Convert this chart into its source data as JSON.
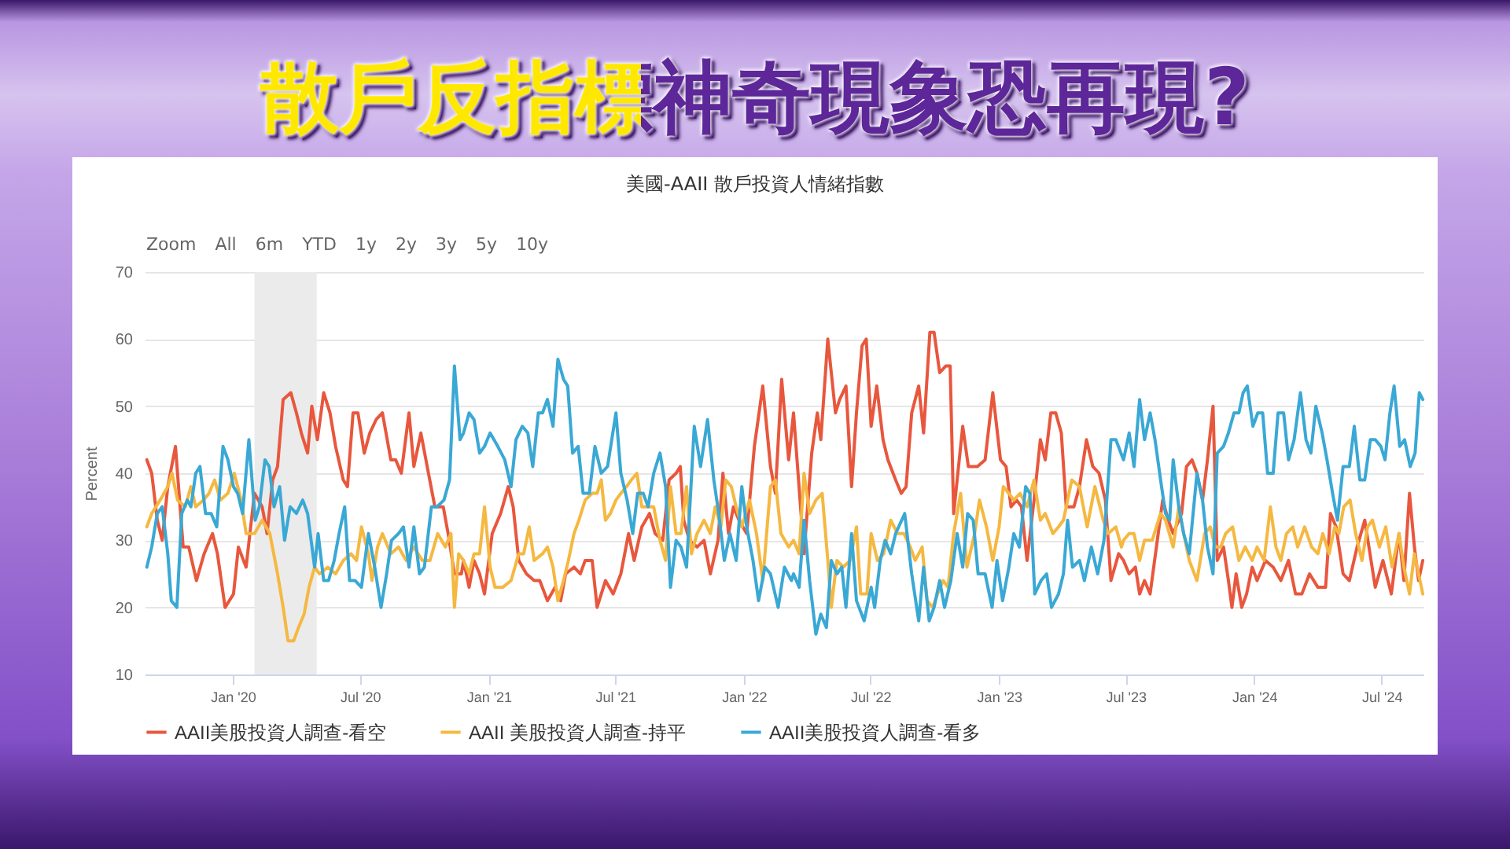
{
  "chart_data": {
    "type": "line",
    "title": "散戶反指標神奇現象恐再現?",
    "subtitle": "美國-AAII 散戶投資人情緒指數",
    "ylabel": "Percent",
    "annotations": [
      "Zoom",
      "All",
      "6m",
      "YTD",
      "1y",
      "2y",
      "3y",
      "5y",
      "10y"
    ],
    "xlim": [
      "2019-08-28",
      "2024-08-30"
    ],
    "xticks": [
      {
        "value": "2020-01-01",
        "label": "Jan '20"
      },
      {
        "value": "2020-07-01",
        "label": "Jul '20"
      },
      {
        "value": "2021-01-01",
        "label": "Jan '21"
      },
      {
        "value": "2021-07-01",
        "label": "Jul '21"
      },
      {
        "value": "2022-01-01",
        "label": "Jan '22"
      },
      {
        "value": "2022-07-01",
        "label": "Jul '22"
      },
      {
        "value": "2023-01-01",
        "label": "Jan '23"
      },
      {
        "value": "2023-07-01",
        "label": "Jul '23"
      },
      {
        "value": "2024-01-01",
        "label": "Jan '24"
      },
      {
        "value": "2024-07-01",
        "label": "Jul '24"
      }
    ],
    "ylim": [
      10,
      70
    ],
    "yticks": [
      10,
      20,
      30,
      40,
      50,
      60,
      70
    ],
    "grid": "y",
    "legend": "bottom",
    "line_style": "solid",
    "bands": [
      {
        "axis": "x",
        "from": "2020-02-01",
        "to": "2020-04-30",
        "color": "#ebebeb"
      }
    ],
    "series": [
      {
        "name": "AAII美股投資人調查-看空",
        "color": "#e8573d",
        "x": [
          "2019-08-31",
          "2019-09-07",
          "2019-09-15",
          "2019-09-22",
          "2019-09-30",
          "2019-10-11",
          "2019-10-22",
          "2019-10-30",
          "2019-11-10",
          "2019-11-21",
          "2019-12-03",
          "2019-12-10",
          "2019-12-21",
          "2020-01-02",
          "2020-01-09",
          "2020-01-20",
          "2020-02-01",
          "2020-02-12",
          "2020-02-19",
          "2020-02-27",
          "2020-03-05",
          "2020-03-13",
          "2020-03-24",
          "2020-04-01",
          "2020-04-08",
          "2020-04-17",
          "2020-04-23",
          "2020-05-01",
          "2020-05-10",
          "2020-05-19",
          "2020-05-27",
          "2020-06-07",
          "2020-06-13",
          "2020-06-21",
          "2020-06-28",
          "2020-07-07",
          "2020-07-15",
          "2020-07-24",
          "2020-08-02",
          "2020-08-14",
          "2020-08-21",
          "2020-08-29",
          "2020-09-09",
          "2020-09-16",
          "2020-09-26",
          "2020-10-05",
          "2020-10-16",
          "2020-10-28",
          "2020-11-04",
          "2020-11-13",
          "2020-11-23",
          "2020-11-26",
          "2020-12-04",
          "2020-12-11",
          "2020-12-19",
          "2020-12-26",
          "2021-01-06",
          "2021-01-18",
          "2021-01-29",
          "2021-02-05",
          "2021-02-13",
          "2021-02-24",
          "2021-03-07",
          "2021-03-15",
          "2021-03-26",
          "2021-04-06",
          "2021-04-14",
          "2021-04-21",
          "2021-05-03",
          "2021-05-12",
          "2021-05-19",
          "2021-05-29",
          "2021-06-05",
          "2021-06-17",
          "2021-06-28",
          "2021-07-09",
          "2021-07-20",
          "2021-07-28",
          "2021-08-08",
          "2021-08-19",
          "2021-08-27",
          "2021-09-07",
          "2021-09-16",
          "2021-09-26",
          "2021-10-02",
          "2021-10-07",
          "2021-10-15",
          "2021-10-26",
          "2021-11-05",
          "2021-11-14",
          "2021-11-25",
          "2021-12-02",
          "2021-12-10",
          "2021-12-17",
          "2021-12-25",
          "2022-01-05",
          "2022-01-16",
          "2022-01-28",
          "2022-02-08",
          "2022-02-15",
          "2022-02-24",
          "2022-03-06",
          "2022-03-13",
          "2022-03-28",
          "2022-04-08",
          "2022-04-16",
          "2022-04-21",
          "2022-05-01",
          "2022-05-12",
          "2022-05-18",
          "2022-05-27",
          "2022-06-04",
          "2022-06-11",
          "2022-06-19",
          "2022-06-25",
          "2022-07-02",
          "2022-07-10",
          "2022-07-19",
          "2022-07-26",
          "2022-08-06",
          "2022-08-14",
          "2022-08-21",
          "2022-08-29",
          "2022-09-08",
          "2022-09-15",
          "2022-09-24",
          "2022-09-30",
          "2022-10-08",
          "2022-10-17",
          "2022-10-23",
          "2022-10-28",
          "2022-11-10",
          "2022-11-18",
          "2022-12-01",
          "2022-12-12",
          "2022-12-23",
          "2023-01-03",
          "2023-01-11",
          "2023-01-18",
          "2023-01-26",
          "2023-02-02",
          "2023-02-10",
          "2023-02-20",
          "2023-03-01",
          "2023-03-08",
          "2023-03-16",
          "2023-03-23",
          "2023-03-31",
          "2023-04-07",
          "2023-04-18",
          "2023-04-26",
          "2023-05-06",
          "2023-05-15",
          "2023-05-24",
          "2023-06-02",
          "2023-06-10",
          "2023-06-21",
          "2023-06-28",
          "2023-07-06",
          "2023-07-15",
          "2023-07-21",
          "2023-07-28",
          "2023-08-05",
          "2023-08-14",
          "2023-08-23",
          "2023-08-31",
          "2023-09-07",
          "2023-09-19",
          "2023-09-26",
          "2023-10-04",
          "2023-10-11",
          "2023-10-19",
          "2023-10-26",
          "2023-11-03",
          "2023-11-09",
          "2023-11-18",
          "2023-11-25",
          "2023-11-30",
          "2023-12-06",
          "2023-12-14",
          "2023-12-21",
          "2023-12-29",
          "2024-01-05",
          "2024-01-17",
          "2024-01-28",
          "2024-02-08",
          "2024-02-19",
          "2024-02-29",
          "2024-03-09",
          "2024-03-20",
          "2024-04-01",
          "2024-04-12",
          "2024-04-19",
          "2024-04-27",
          "2024-05-07",
          "2024-05-16",
          "2024-05-27",
          "2024-06-07",
          "2024-06-16",
          "2024-06-22",
          "2024-07-03",
          "2024-07-15",
          "2024-07-26",
          "2024-08-02",
          "2024-08-10",
          "2024-08-17",
          "2024-08-23",
          "2024-08-29"
        ],
        "values": [
          42,
          40,
          33,
          30,
          38,
          44,
          29,
          29,
          24,
          28,
          31,
          28,
          20,
          22,
          29,
          26,
          37,
          35,
          31,
          39,
          41,
          51,
          52,
          49,
          46,
          43,
          50,
          45,
          52,
          49,
          44,
          39,
          38,
          49,
          49,
          43,
          46,
          48,
          49,
          42,
          42,
          40,
          49,
          41,
          46,
          41,
          35,
          35,
          31,
          25,
          25,
          27,
          23,
          27,
          25,
          22,
          31,
          34,
          38,
          35,
          27,
          25,
          24,
          24,
          21,
          23,
          21,
          25,
          26,
          25,
          27,
          27,
          20,
          24,
          22,
          25,
          31,
          27,
          32,
          34,
          31,
          30,
          39,
          40,
          41,
          33,
          30,
          29,
          30,
          25,
          30,
          40,
          31,
          35,
          33,
          31,
          44,
          53,
          41,
          37,
          54,
          42,
          49,
          28,
          43,
          49,
          45,
          60,
          49,
          51,
          53,
          38,
          49,
          59,
          60,
          47,
          53,
          45,
          42,
          39,
          37,
          38,
          49,
          53,
          46,
          61,
          61,
          55,
          56,
          56,
          34,
          47,
          41,
          41,
          42,
          52,
          42,
          41,
          35,
          36,
          35,
          27,
          36,
          45,
          42,
          49,
          49,
          46,
          35,
          35,
          38,
          45,
          41,
          40,
          36,
          24,
          28,
          27,
          25,
          26,
          22,
          24,
          22,
          29,
          36,
          33,
          31,
          34,
          41,
          42,
          40,
          36,
          42,
          50,
          27,
          29,
          24,
          20,
          25,
          20,
          22,
          26,
          24,
          27,
          26,
          24,
          27,
          22,
          22,
          25,
          23,
          23,
          34,
          32,
          25,
          24,
          29,
          33,
          27,
          23,
          27,
          22,
          31,
          24,
          37,
          29,
          24,
          27
        ]
      },
      {
        "name": "AAII 美股投資人調查-持平",
        "color": "#f5b841",
        "x": [
          "2019-08-31",
          "2019-09-07",
          "2019-09-19",
          "2019-09-30",
          "2019-10-06",
          "2019-10-14",
          "2019-10-25",
          "2019-11-02",
          "2019-11-09",
          "2019-11-20",
          "2019-11-28",
          "2019-12-06",
          "2019-12-14",
          "2019-12-25",
          "2020-01-03",
          "2020-01-13",
          "2020-01-20",
          "2020-02-01",
          "2020-02-12",
          "2020-02-23",
          "2020-03-05",
          "2020-03-13",
          "2020-03-20",
          "2020-03-28",
          "2020-04-04",
          "2020-04-12",
          "2020-04-19",
          "2020-04-27",
          "2020-05-04",
          "2020-05-16",
          "2020-05-27",
          "2020-06-07",
          "2020-06-18",
          "2020-06-26",
          "2020-07-03",
          "2020-07-13",
          "2020-07-18",
          "2020-07-26",
          "2020-08-02",
          "2020-08-14",
          "2020-08-25",
          "2020-09-05",
          "2020-09-16",
          "2020-09-28",
          "2020-10-09",
          "2020-10-20",
          "2020-10-31",
          "2020-11-08",
          "2020-11-13",
          "2020-11-19",
          "2020-11-26",
          "2020-12-04",
          "2020-12-11",
          "2020-12-19",
          "2020-12-26",
          "2021-01-03",
          "2021-01-10",
          "2021-01-21",
          "2021-02-02",
          "2021-02-13",
          "2021-02-20",
          "2021-02-28",
          "2021-03-07",
          "2021-03-19",
          "2021-03-26",
          "2021-04-03",
          "2021-04-10",
          "2021-04-18",
          "2021-04-25",
          "2021-05-03",
          "2021-05-10",
          "2021-05-19",
          "2021-05-29",
          "2021-06-05",
          "2021-06-11",
          "2021-06-17",
          "2021-06-24",
          "2021-07-02",
          "2021-07-09",
          "2021-07-17",
          "2021-07-24",
          "2021-08-01",
          "2021-08-08",
          "2021-08-16",
          "2021-08-25",
          "2021-09-03",
          "2021-09-11",
          "2021-09-18",
          "2021-09-26",
          "2021-10-03",
          "2021-10-11",
          "2021-10-18",
          "2021-10-26",
          "2021-11-05",
          "2021-11-14",
          "2021-11-21",
          "2021-11-29",
          "2021-12-06",
          "2021-12-14",
          "2021-12-21",
          "2021-12-29",
          "2022-01-09",
          "2022-01-19",
          "2022-01-28",
          "2022-02-08",
          "2022-02-15",
          "2022-02-23",
          "2022-03-06",
          "2022-03-13",
          "2022-03-21",
          "2022-03-28",
          "2022-04-05",
          "2022-04-14",
          "2022-04-23",
          "2022-05-01",
          "2022-05-06",
          "2022-05-14",
          "2022-05-23",
          "2022-06-02",
          "2022-06-11",
          "2022-06-17",
          "2022-06-26",
          "2022-07-02",
          "2022-07-11",
          "2022-07-20",
          "2022-07-30",
          "2022-08-09",
          "2022-08-18",
          "2022-08-27",
          "2022-09-03",
          "2022-09-13",
          "2022-09-20",
          "2022-09-28",
          "2022-10-05",
          "2022-10-13",
          "2022-10-20",
          "2022-10-28",
          "2022-11-07",
          "2022-11-16",
          "2022-11-27",
          "2022-12-04",
          "2022-12-14",
          "2022-12-23",
          "2023-01-01",
          "2023-01-07",
          "2023-01-15",
          "2023-01-22",
          "2023-01-31",
          "2023-02-10",
          "2023-02-20",
          "2023-03-01",
          "2023-03-08",
          "2023-03-19",
          "2023-03-27",
          "2023-04-03",
          "2023-04-15",
          "2023-04-26",
          "2023-05-07",
          "2023-05-18",
          "2023-05-30",
          "2023-06-06",
          "2023-06-17",
          "2023-06-25",
          "2023-06-28",
          "2023-07-06",
          "2023-07-13",
          "2023-07-21",
          "2023-07-28",
          "2023-08-08",
          "2023-08-20",
          "2023-08-27",
          "2023-09-07",
          "2023-09-15",
          "2023-09-22",
          "2023-09-30",
          "2023-10-11",
          "2023-10-22",
          "2023-10-30",
          "2023-11-06",
          "2023-11-14",
          "2023-11-21",
          "2023-12-01",
          "2023-12-10",
          "2023-12-19",
          "2023-12-29",
          "2024-01-05",
          "2024-01-15",
          "2024-01-24",
          "2024-02-01",
          "2024-02-08",
          "2024-02-16",
          "2024-02-25",
          "2024-03-03",
          "2024-03-13",
          "2024-03-23",
          "2024-04-01",
          "2024-04-08",
          "2024-04-17",
          "2024-04-25",
          "2024-05-01",
          "2024-05-08",
          "2024-05-17",
          "2024-05-25",
          "2024-06-03",
          "2024-06-11",
          "2024-06-18",
          "2024-06-28",
          "2024-07-07",
          "2024-07-16",
          "2024-07-26",
          "2024-08-02",
          "2024-08-10",
          "2024-08-17",
          "2024-08-25",
          "2024-08-29"
        ],
        "values": [
          32,
          34,
          36,
          38,
          40,
          36,
          35,
          38,
          35,
          36,
          37,
          39,
          36,
          37,
          40,
          36,
          31,
          31,
          33,
          31,
          25,
          20,
          15,
          15,
          17,
          19,
          23,
          26,
          25,
          26,
          25,
          27,
          28,
          27,
          32,
          28,
          24,
          29,
          31,
          28,
          29,
          27,
          29,
          27,
          27,
          31,
          29,
          31,
          20,
          28,
          27,
          25,
          28,
          28,
          35,
          26,
          23,
          23,
          24,
          28,
          28,
          32,
          27,
          28,
          29,
          26,
          21,
          24,
          27,
          31,
          33,
          36,
          37,
          37,
          39,
          33,
          34,
          36,
          37,
          38,
          39,
          40,
          35,
          35,
          35,
          30,
          27,
          38,
          31,
          31,
          38,
          28,
          31,
          33,
          31,
          35,
          32,
          39,
          38,
          35,
          32,
          36,
          31,
          24,
          38,
          39,
          31,
          29,
          30,
          28,
          40,
          34,
          36,
          37,
          27,
          20,
          27,
          26,
          27,
          32,
          22,
          22,
          31,
          27,
          28,
          33,
          31,
          31,
          29,
          27,
          29,
          21,
          20,
          22,
          24,
          23,
          31,
          37,
          26,
          31,
          36,
          32,
          27,
          32,
          38,
          37,
          36,
          37,
          35,
          39,
          33,
          34,
          31,
          32,
          33,
          39,
          38,
          32,
          38,
          33,
          31,
          32,
          29,
          30,
          31,
          31,
          27,
          30,
          30,
          34,
          33,
          29,
          35,
          31,
          27,
          24,
          31,
          32,
          29,
          29,
          31,
          32,
          27,
          29,
          27,
          29,
          27,
          35,
          29,
          27,
          31,
          32,
          29,
          32,
          29,
          28,
          31,
          28,
          32,
          31,
          35,
          36,
          31,
          27,
          32,
          33,
          29,
          32,
          26,
          31,
          26,
          22,
          28,
          24,
          22
        ]
      },
      {
        "name": "AAII美股投資人調查-看多",
        "color": "#3aa8d5",
        "x": [
          "2019-08-31",
          "2019-09-07",
          "2019-09-15",
          "2019-09-22",
          "2019-09-30",
          "2019-10-05",
          "2019-10-13",
          "2019-10-20",
          "2019-10-28",
          "2019-11-02",
          "2019-11-09",
          "2019-11-15",
          "2019-11-23",
          "2019-12-01",
          "2019-12-09",
          "2019-12-18",
          "2019-12-25",
          "2020-01-02",
          "2020-01-08",
          "2020-01-15",
          "2020-01-24",
          "2020-02-02",
          "2020-02-08",
          "2020-02-16",
          "2020-02-22",
          "2020-02-29",
          "2020-03-08",
          "2020-03-15",
          "2020-03-23",
          "2020-04-01",
          "2020-04-10",
          "2020-04-17",
          "2020-04-27",
          "2020-05-02",
          "2020-05-10",
          "2020-05-17",
          "2020-05-25",
          "2020-06-01",
          "2020-06-09",
          "2020-06-16",
          "2020-06-24",
          "2020-07-03",
          "2020-07-13",
          "2020-07-22",
          "2020-07-31",
          "2020-08-08",
          "2020-08-15",
          "2020-08-25",
          "2020-09-01",
          "2020-09-09",
          "2020-09-16",
          "2020-09-24",
          "2020-10-01",
          "2020-10-11",
          "2020-10-19",
          "2020-10-29",
          "2020-11-06",
          "2020-11-13",
          "2020-11-21",
          "2020-11-26",
          "2020-12-04",
          "2020-12-11",
          "2020-12-19",
          "2020-12-26",
          "2021-01-03",
          "2021-01-14",
          "2021-01-24",
          "2021-02-02",
          "2021-02-09",
          "2021-02-18",
          "2021-02-26",
          "2021-03-05",
          "2021-03-13",
          "2021-03-19",
          "2021-03-26",
          "2021-04-03",
          "2021-04-10",
          "2021-04-18",
          "2021-04-24",
          "2021-05-01",
          "2021-05-09",
          "2021-05-16",
          "2021-05-25",
          "2021-06-02",
          "2021-06-11",
          "2021-06-20",
          "2021-07-02",
          "2021-07-09",
          "2021-07-18",
          "2021-07-26",
          "2021-08-02",
          "2021-08-10",
          "2021-08-17",
          "2021-08-25",
          "2021-09-03",
          "2021-09-11",
          "2021-09-18",
          "2021-09-26",
          "2021-10-03",
          "2021-10-11",
          "2021-10-22",
          "2021-10-31",
          "2021-11-10",
          "2021-11-19",
          "2021-11-26",
          "2021-12-04",
          "2021-12-12",
          "2021-12-21",
          "2021-12-29",
          "2022-01-05",
          "2022-01-14",
          "2022-01-22",
          "2022-01-31",
          "2022-02-08",
          "2022-02-19",
          "2022-02-28",
          "2022-03-10",
          "2022-03-13",
          "2022-03-21",
          "2022-03-28",
          "2022-04-05",
          "2022-04-14",
          "2022-04-21",
          "2022-04-29",
          "2022-05-06",
          "2022-05-14",
          "2022-05-21",
          "2022-05-27",
          "2022-06-04",
          "2022-06-11",
          "2022-06-22",
          "2022-07-02",
          "2022-07-07",
          "2022-07-15",
          "2022-07-22",
          "2022-07-30",
          "2022-08-06",
          "2022-08-19",
          "2022-08-29",
          "2022-09-08",
          "2022-09-15",
          "2022-09-23",
          "2022-09-30",
          "2022-10-08",
          "2022-10-15",
          "2022-10-24",
          "2022-11-02",
          "2022-11-10",
          "2022-11-17",
          "2022-11-25",
          "2022-12-02",
          "2022-12-12",
          "2022-12-22",
          "2022-12-29",
          "2023-01-06",
          "2023-01-15",
          "2023-01-22",
          "2023-01-30",
          "2023-02-08",
          "2023-02-14",
          "2023-02-21",
          "2023-03-02",
          "2023-03-10",
          "2023-03-17",
          "2023-03-27",
          "2023-04-03",
          "2023-04-09",
          "2023-04-16",
          "2023-04-26",
          "2023-05-03",
          "2023-05-13",
          "2023-05-22",
          "2023-05-31",
          "2023-06-10",
          "2023-06-17",
          "2023-06-28",
          "2023-07-06",
          "2023-07-13",
          "2023-07-21",
          "2023-07-28",
          "2023-08-05",
          "2023-08-12",
          "2023-08-20",
          "2023-08-27",
          "2023-09-02",
          "2023-09-07",
          "2023-09-15",
          "2023-09-22",
          "2023-09-30",
          "2023-10-11",
          "2023-10-19",
          "2023-10-26",
          "2023-11-03",
          "2023-11-09",
          "2023-11-18",
          "2023-11-25",
          "2023-12-03",
          "2023-12-10",
          "2023-12-16",
          "2023-12-22",
          "2023-12-30",
          "2024-01-06",
          "2024-01-13",
          "2024-01-20",
          "2024-01-28",
          "2024-02-04",
          "2024-02-12",
          "2024-02-19",
          "2024-02-27",
          "2024-03-07",
          "2024-03-15",
          "2024-03-22",
          "2024-03-29",
          "2024-04-07",
          "2024-04-14",
          "2024-04-22",
          "2024-04-29",
          "2024-05-07",
          "2024-05-16",
          "2024-05-23",
          "2024-05-31",
          "2024-06-07",
          "2024-06-15",
          "2024-06-22",
          "2024-06-30",
          "2024-07-06",
          "2024-07-13",
          "2024-07-19",
          "2024-07-27",
          "2024-08-03",
          "2024-08-11",
          "2024-08-18",
          "2024-08-24",
          "2024-08-29"
        ],
        "values": [
          26,
          29,
          34,
          35,
          28,
          21,
          20,
          34,
          36,
          35,
          40,
          41,
          34,
          34,
          32,
          44,
          42,
          38,
          37,
          34,
          45,
          33,
          35,
          42,
          41,
          35,
          38,
          30,
          35,
          34,
          36,
          34,
          26,
          31,
          24,
          24,
          27,
          31,
          35,
          24,
          24,
          23,
          31,
          26,
          20,
          25,
          30,
          31,
          32,
          26,
          32,
          25,
          26,
          35,
          35,
          36,
          39,
          56,
          45,
          46,
          49,
          48,
          43,
          44,
          46,
          44,
          42,
          38,
          45,
          47,
          46,
          41,
          49,
          49,
          51,
          47,
          57,
          54,
          53,
          43,
          44,
          37,
          37,
          44,
          40,
          41,
          49,
          40,
          36,
          31,
          37,
          37,
          35,
          40,
          43,
          38,
          23,
          30,
          29,
          26,
          47,
          41,
          48,
          39,
          34,
          27,
          31,
          27,
          38,
          32,
          27,
          21,
          26,
          25,
          20,
          26,
          24,
          25,
          23,
          33,
          24,
          16,
          19,
          17,
          27,
          25,
          26,
          20,
          31,
          21,
          18,
          23,
          20,
          27,
          30,
          28,
          31,
          34,
          25,
          18,
          26,
          18,
          20,
          24,
          20,
          24,
          31,
          26,
          34,
          33,
          25,
          25,
          20,
          27,
          21,
          26,
          31,
          29,
          38,
          37,
          22,
          24,
          25,
          20,
          22,
          25,
          33,
          26,
          27,
          24,
          29,
          25,
          30,
          45,
          45,
          42,
          46,
          41,
          51,
          45,
          49,
          45,
          39,
          34,
          33,
          42,
          35,
          31,
          28,
          40,
          36,
          29,
          25,
          43,
          44,
          46,
          49,
          49,
          52,
          53,
          47,
          49,
          49,
          40,
          40,
          49,
          49,
          42,
          45,
          52,
          45,
          43,
          50,
          46,
          42,
          37,
          33,
          41,
          41,
          47,
          39,
          39,
          45,
          45,
          44,
          42,
          49,
          53,
          44,
          45,
          41,
          43,
          52,
          51
        ]
      }
    ]
  }
}
